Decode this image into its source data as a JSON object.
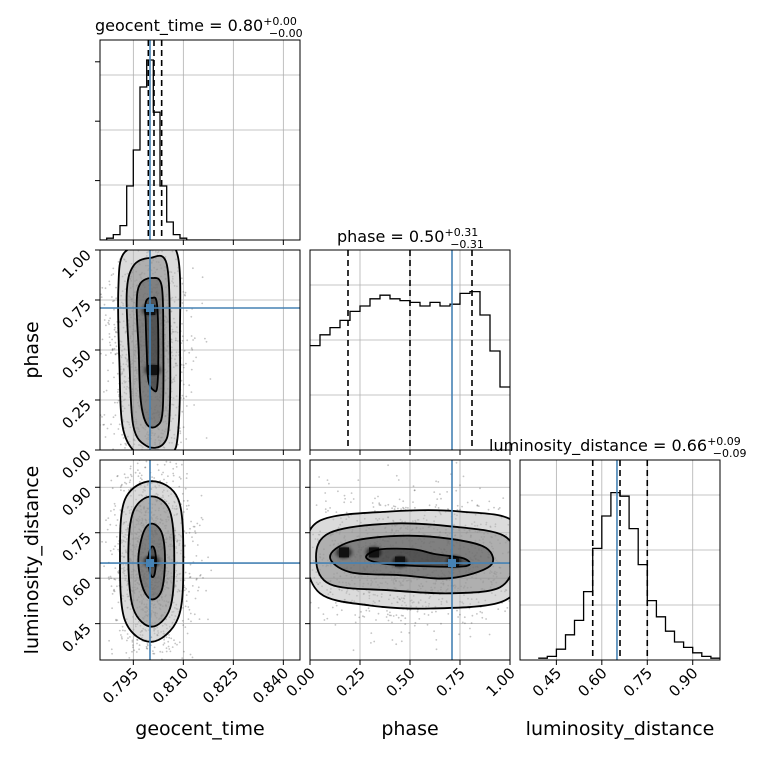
{
  "colors": {
    "truth": "#4682b4",
    "line": "#000000",
    "grid": "#b0b0b0"
  },
  "chart_data": {
    "type": "corner",
    "parameters": [
      {
        "name": "geocent_time",
        "title": {
          "main": "geocent_time = 0.80",
          "plus": "+0.00",
          "minus": "−0.00"
        },
        "range": [
          0.785,
          0.845
        ],
        "ticks": [
          0.795,
          0.81,
          0.825,
          0.84
        ],
        "tick_labels": [
          "0.795",
          "0.810",
          "0.825",
          "0.840"
        ],
        "truth": 0.8,
        "quantiles": [
          0.7995,
          0.8012,
          0.8035
        ],
        "hist_edges": [
          0.785,
          0.787,
          0.789,
          0.791,
          0.793,
          0.795,
          0.797,
          0.799,
          0.801,
          0.803,
          0.805,
          0.807,
          0.809,
          0.811,
          0.813,
          0.815,
          0.817,
          0.819,
          0.821
        ],
        "hist_counts": [
          0.0,
          0.01,
          0.03,
          0.08,
          0.3,
          0.5,
          0.85,
          1.0,
          0.71,
          0.3,
          0.1,
          0.03,
          0.01,
          0.0,
          0.0,
          0.0,
          0.0,
          0.0
        ]
      },
      {
        "name": "phase",
        "title": {
          "main": "phase = 0.50",
          "plus": "+0.31",
          "minus": "−0.31"
        },
        "range": [
          0.0,
          1.0
        ],
        "ticks": [
          0.0,
          0.25,
          0.5,
          0.75,
          1.0
        ],
        "tick_labels": [
          "0.00",
          "0.25",
          "0.50",
          "0.75",
          "1.00"
        ],
        "truth": 0.71,
        "quantiles": [
          0.19,
          0.5,
          0.81
        ],
        "hist_edges": [
          0.0,
          0.05,
          0.1,
          0.15,
          0.2,
          0.25,
          0.3,
          0.35,
          0.4,
          0.45,
          0.5,
          0.55,
          0.6,
          0.65,
          0.7,
          0.75,
          0.8,
          0.85,
          0.9,
          0.95,
          1.0
        ],
        "hist_counts": [
          0.58,
          0.64,
          0.68,
          0.72,
          0.77,
          0.8,
          0.84,
          0.86,
          0.84,
          0.83,
          0.82,
          0.8,
          0.82,
          0.8,
          0.81,
          0.87,
          0.88,
          0.75,
          0.55,
          0.35
        ]
      },
      {
        "name": "luminosity_distance",
        "title": {
          "main": "luminosity_distance = 0.66",
          "plus": "+0.09",
          "minus": "−0.09"
        },
        "range": [
          0.33,
          0.99
        ],
        "ticks": [
          0.45,
          0.6,
          0.75,
          0.9
        ],
        "tick_labels": [
          "0.45",
          "0.60",
          "0.75",
          "0.90"
        ],
        "truth": 0.65,
        "quantiles": [
          0.57,
          0.66,
          0.75
        ],
        "hist_edges": [
          0.39,
          0.42,
          0.45,
          0.48,
          0.51,
          0.54,
          0.57,
          0.6,
          0.63,
          0.66,
          0.69,
          0.72,
          0.75,
          0.78,
          0.81,
          0.84,
          0.87,
          0.9,
          0.93,
          0.96,
          0.99
        ],
        "hist_counts": [
          0.01,
          0.02,
          0.06,
          0.14,
          0.22,
          0.38,
          0.62,
          0.8,
          0.93,
          0.91,
          0.73,
          0.53,
          0.33,
          0.24,
          0.16,
          0.1,
          0.07,
          0.04,
          0.02,
          0.01
        ]
      }
    ],
    "panels_2d": [
      {
        "x": "geocent_time",
        "y": "phase",
        "truth": [
          0.8,
          0.71
        ],
        "peaks": [
          [
            0.8001,
            0.7
          ],
          [
            0.8008,
            0.4
          ]
        ],
        "contours": [
          {
            "level": 1,
            "points": [
              [
                0.7985,
                0.71
              ],
              [
                0.799,
                0.75
              ],
              [
                0.8005,
                0.76
              ],
              [
                0.802,
                0.74
              ],
              [
                0.8025,
                0.55
              ],
              [
                0.8022,
                0.32
              ],
              [
                0.801,
                0.3
              ],
              [
                0.7995,
                0.35
              ],
              [
                0.799,
                0.5
              ],
              [
                0.7987,
                0.65
              ]
            ]
          },
          {
            "level": 2,
            "points": [
              [
                0.796,
                0.73
              ],
              [
                0.797,
                0.83
              ],
              [
                0.8005,
                0.86
              ],
              [
                0.8035,
                0.82
              ],
              [
                0.804,
                0.55
              ],
              [
                0.8038,
                0.2
              ],
              [
                0.802,
                0.12
              ],
              [
                0.799,
                0.13
              ],
              [
                0.7972,
                0.25
              ],
              [
                0.7966,
                0.5
              ]
            ]
          },
          {
            "level": 3,
            "points": [
              [
                0.793,
                0.78
              ],
              [
                0.795,
                0.92
              ],
              [
                0.8,
                0.96
              ],
              [
                0.805,
                0.93
              ],
              [
                0.806,
                0.55
              ],
              [
                0.8058,
                0.15
              ],
              [
                0.804,
                0.03
              ],
              [
                0.799,
                0.02
              ],
              [
                0.795,
                0.12
              ],
              [
                0.7938,
                0.45
              ]
            ]
          },
          {
            "level": 4,
            "points": [
              [
                0.7905,
                0.8
              ],
              [
                0.792,
                0.98
              ],
              [
                0.799,
                1.02
              ],
              [
                0.808,
                0.99
              ],
              [
                0.809,
                0.55
              ],
              [
                0.8085,
                0.1
              ],
              [
                0.806,
                -0.02
              ],
              [
                0.7975,
                -0.03
              ],
              [
                0.792,
                0.1
              ],
              [
                0.7908,
                0.45
              ]
            ]
          }
        ]
      },
      {
        "x": "geocent_time",
        "y": "luminosity_distance",
        "truth": [
          0.8,
          0.65
        ],
        "peaks": [
          [
            0.8005,
            0.655
          ]
        ],
        "contours": [
          {
            "level": 1,
            "points": [
              [
                0.7995,
                0.66
              ],
              [
                0.8002,
                0.7
              ],
              [
                0.8012,
                0.7
              ],
              [
                0.8018,
                0.66
              ],
              [
                0.8013,
                0.61
              ],
              [
                0.8002,
                0.61
              ]
            ]
          },
          {
            "level": 2,
            "points": [
              [
                0.7965,
                0.66
              ],
              [
                0.798,
                0.75
              ],
              [
                0.8005,
                0.78
              ],
              [
                0.8035,
                0.75
              ],
              [
                0.8045,
                0.66
              ],
              [
                0.8035,
                0.56
              ],
              [
                0.8005,
                0.53
              ],
              [
                0.7978,
                0.57
              ]
            ]
          },
          {
            "level": 3,
            "points": [
              [
                0.7935,
                0.67
              ],
              [
                0.795,
                0.82
              ],
              [
                0.8005,
                0.87
              ],
              [
                0.806,
                0.82
              ],
              [
                0.8073,
                0.66
              ],
              [
                0.806,
                0.5
              ],
              [
                0.8005,
                0.44
              ],
              [
                0.795,
                0.5
              ]
            ]
          },
          {
            "level": 4,
            "points": [
              [
                0.791,
                0.67
              ],
              [
                0.7925,
                0.86
              ],
              [
                0.8005,
                0.92
              ],
              [
                0.8085,
                0.86
              ],
              [
                0.81,
                0.66
              ],
              [
                0.8085,
                0.47
              ],
              [
                0.8005,
                0.39
              ],
              [
                0.7925,
                0.46
              ]
            ]
          }
        ]
      },
      {
        "x": "phase",
        "y": "luminosity_distance",
        "truth": [
          0.71,
          0.65
        ],
        "peaks": [
          [
            0.17,
            0.685
          ],
          [
            0.32,
            0.685
          ],
          [
            0.45,
            0.655
          ],
          [
            0.72,
            0.655
          ]
        ],
        "contours": [
          {
            "level": 1,
            "points": [
              [
                0.28,
                0.67
              ],
              [
                0.35,
                0.695
              ],
              [
                0.52,
                0.695
              ],
              [
                0.62,
                0.68
              ],
              [
                0.77,
                0.665
              ],
              [
                0.78,
                0.64
              ],
              [
                0.55,
                0.64
              ],
              [
                0.35,
                0.65
              ]
            ]
          },
          {
            "level": 2,
            "points": [
              [
                0.1,
                0.67
              ],
              [
                0.2,
                0.72
              ],
              [
                0.45,
                0.74
              ],
              [
                0.7,
                0.73
              ],
              [
                0.88,
                0.7
              ],
              [
                0.9,
                0.64
              ],
              [
                0.7,
                0.6
              ],
              [
                0.45,
                0.61
              ],
              [
                0.2,
                0.62
              ]
            ]
          },
          {
            "level": 3,
            "points": [
              [
                0.03,
                0.67
              ],
              [
                0.1,
                0.75
              ],
              [
                0.4,
                0.78
              ],
              [
                0.72,
                0.77
              ],
              [
                0.97,
                0.74
              ],
              [
                1.02,
                0.66
              ],
              [
                0.95,
                0.57
              ],
              [
                0.7,
                0.55
              ],
              [
                0.4,
                0.56
              ],
              [
                0.1,
                0.58
              ]
            ]
          },
          {
            "level": 4,
            "points": [
              [
                -0.02,
                0.68
              ],
              [
                0.05,
                0.79
              ],
              [
                0.4,
                0.82
              ],
              [
                0.75,
                0.82
              ],
              [
                1.03,
                0.78
              ],
              [
                1.04,
                0.6
              ],
              [
                0.95,
                0.52
              ],
              [
                0.6,
                0.5
              ],
              [
                0.3,
                0.51
              ],
              [
                0.05,
                0.55
              ]
            ]
          }
        ]
      }
    ],
    "grid": true
  },
  "labels": {
    "x": [
      "geocent_time",
      "phase",
      "luminosity_distance"
    ],
    "y": [
      "phase",
      "luminosity_distance"
    ]
  }
}
